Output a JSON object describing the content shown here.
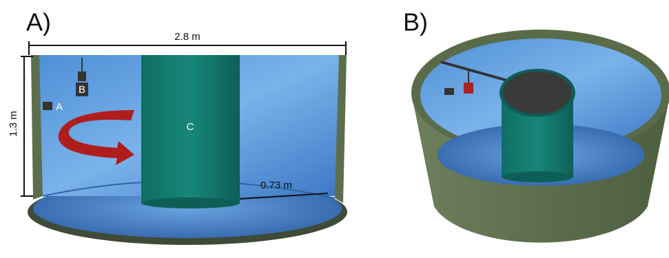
{
  "panels": [
    {
      "label": "A)",
      "dimensions": {
        "diameter": "2.8 m",
        "height": "1.3 m",
        "gap": "0.73 m"
      },
      "labels": {
        "camera_a": "A",
        "camera_b": "B",
        "cylinder": "C"
      }
    },
    {
      "label": "B)"
    }
  ]
}
